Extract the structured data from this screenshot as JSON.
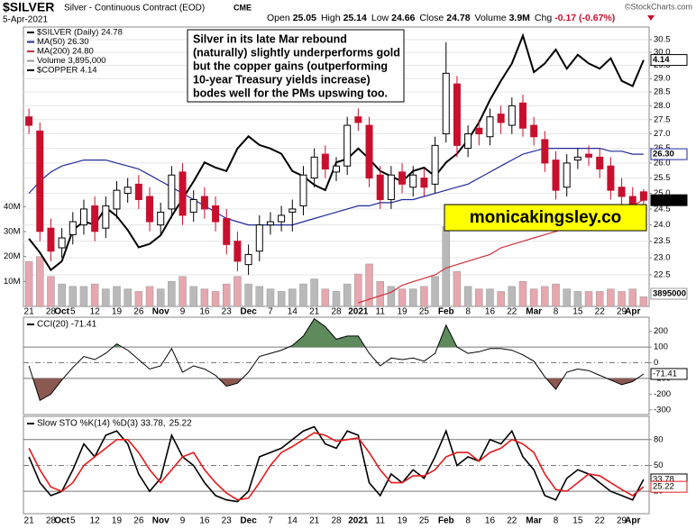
{
  "chart_data": [
    {
      "type": "candlestick",
      "title": "$SILVER",
      "subtitle": "Silver - Continuous Contract (EOD)",
      "exchange": "CME",
      "date": "5-Apr-2021",
      "credit": "©StockCharts.com",
      "quote": [
        {
          "label": "Open",
          "value": "25.05"
        },
        {
          "label": "High",
          "value": "25.14"
        },
        {
          "label": "Low",
          "value": "24.66"
        },
        {
          "label": "Close",
          "value": "24.78"
        },
        {
          "label": "Volume",
          "value": "3.9M"
        },
        {
          "label": "Chg",
          "value": "-0.17 (-0.67%)"
        }
      ],
      "annotation": [
        "Silver in its late Mar rebound",
        "(naturally) slightly underperforms gold",
        "but the copper gains (outperforming",
        "10-year Treasury yields increase)",
        "bodes well for the PMs upswing too."
      ],
      "watermark": "monicakingsley.co",
      "categories": [
        "21",
        null,
        "28",
        "Oct",
        "5",
        null,
        "12",
        null,
        "19",
        null,
        "26",
        null,
        "Nov",
        null,
        "9",
        null,
        "16",
        null,
        "23",
        null,
        "Dec",
        null,
        "7",
        null,
        "14",
        null,
        "21",
        null,
        "28",
        null,
        "2021",
        null,
        "11",
        null,
        "19",
        null,
        "25",
        null,
        "Feb",
        null,
        "8",
        null,
        "16",
        null,
        "22",
        null,
        "Mar",
        null,
        "8",
        null,
        "15",
        null,
        "22",
        null,
        "29",
        "Apr",
        null
      ],
      "price": {
        "name": "$SILVER (Daily) 24.78",
        "up_color": "#000000",
        "down_color": "#c8102e",
        "open": [
          27.6,
          27.1,
          23.9,
          23.3,
          23.7,
          24.0,
          24.6,
          23.9,
          24.5,
          25.0,
          25.3,
          24.9,
          24.0,
          24.5,
          25.7,
          24.4,
          24.9,
          24.6,
          24.2,
          23.5,
          22.8,
          23.2,
          24.0,
          24.1,
          24.4,
          24.6,
          25.5,
          26.3,
          25.7,
          25.9,
          27.6,
          27.3,
          25.6,
          24.8,
          25.7,
          25.2,
          25.5,
          25.3,
          27.0,
          28.8,
          26.5,
          27.2,
          26.9,
          27.7,
          27.3,
          28.1,
          27.3,
          26.8,
          26.1,
          25.2,
          26.1,
          26.3,
          26.2,
          25.9,
          25.2,
          24.9,
          25.05
        ],
        "high": [
          27.9,
          27.4,
          24.2,
          23.9,
          24.4,
          24.8,
          24.9,
          24.9,
          25.4,
          25.5,
          25.6,
          25.2,
          24.7,
          25.9,
          26.0,
          25.1,
          25.2,
          24.9,
          24.5,
          23.8,
          23.4,
          24.3,
          24.4,
          24.6,
          24.8,
          25.9,
          26.5,
          26.6,
          26.2,
          27.6,
          27.9,
          27.6,
          25.9,
          25.9,
          26.0,
          25.9,
          25.8,
          26.9,
          30.4,
          29.1,
          27.3,
          27.5,
          27.9,
          28.0,
          28.3,
          28.4,
          27.6,
          27.1,
          26.4,
          26.3,
          26.5,
          26.6,
          26.5,
          26.2,
          25.5,
          25.2,
          25.14
        ],
        "low": [
          27.0,
          23.5,
          22.9,
          23.0,
          23.4,
          23.7,
          23.5,
          23.6,
          24.2,
          24.7,
          24.5,
          23.8,
          23.7,
          24.2,
          24.0,
          24.1,
          24.2,
          23.8,
          23.1,
          22.6,
          22.5,
          22.9,
          23.7,
          23.8,
          23.8,
          24.3,
          25.2,
          25.5,
          25.4,
          25.6,
          27.1,
          25.2,
          24.5,
          24.5,
          25.0,
          24.9,
          24.9,
          25.0,
          26.7,
          26.2,
          26.2,
          26.6,
          26.6,
          27.0,
          27.0,
          26.9,
          26.6,
          25.7,
          24.8,
          24.9,
          25.8,
          25.9,
          25.5,
          24.8,
          24.6,
          24.0,
          24.66
        ],
        "close": [
          27.3,
          23.8,
          23.2,
          23.6,
          24.1,
          24.5,
          23.8,
          24.6,
          25.1,
          25.2,
          24.8,
          24.1,
          24.4,
          25.6,
          24.3,
          24.8,
          24.5,
          24.1,
          23.4,
          22.9,
          23.1,
          24.0,
          24.1,
          24.3,
          24.5,
          25.6,
          26.2,
          25.8,
          25.9,
          27.3,
          27.4,
          25.5,
          24.8,
          25.6,
          25.3,
          25.6,
          25.2,
          26.6,
          29.2,
          26.6,
          27.0,
          27.0,
          27.6,
          27.4,
          28.0,
          27.2,
          26.9,
          26.0,
          25.1,
          26.0,
          26.2,
          26.2,
          25.8,
          25.1,
          24.9,
          24.3,
          24.78
        ]
      },
      "log_scale": true,
      "ylim": [
        21.6,
        31.0
      ],
      "yticks": [
        22.5,
        {
          "value": 23,
          "label": "23.0"
        },
        23.5,
        {
          "value": 24,
          "label": "24.0"
        },
        24.5,
        {
          "value": 25,
          "label": "25.0"
        },
        25.5,
        {
          "value": 26,
          "label": "26.0"
        },
        26.5,
        {
          "value": 27,
          "label": "27.0"
        },
        27.5,
        {
          "value": 28,
          "label": "28.0"
        },
        28.5,
        {
          "value": 29,
          "label": "29.0"
        },
        29.5,
        {
          "value": 30,
          "label": "30.0"
        },
        30.5
      ],
      "grid": true,
      "overlays": [
        {
          "name": "MA(50) 26.30",
          "color": "#1f2a9a",
          "last_label": "26.30",
          "values": [
            25.0,
            25.4,
            25.7,
            25.9,
            26.0,
            26.1,
            26.1,
            26.1,
            26.0,
            25.9,
            25.8,
            25.6,
            25.4,
            25.2,
            25.0,
            24.8,
            24.6,
            24.4,
            24.2,
            24.1,
            24.0,
            24.0,
            24.0,
            24.0,
            24.0,
            24.1,
            24.2,
            24.3,
            24.4,
            24.5,
            24.6,
            24.6,
            24.7,
            24.7,
            24.8,
            24.8,
            24.9,
            25.0,
            25.1,
            25.2,
            25.3,
            25.5,
            25.7,
            25.9,
            26.1,
            26.3,
            26.4,
            26.5,
            26.5,
            26.5,
            26.5,
            26.5,
            26.5,
            26.4,
            26.4,
            26.3,
            26.3
          ]
        },
        {
          "name": "MA(200) 24.80",
          "color": "#d0303a",
          "values": [
            null,
            null,
            null,
            null,
            null,
            null,
            null,
            null,
            null,
            null,
            null,
            null,
            null,
            null,
            null,
            null,
            null,
            null,
            null,
            null,
            null,
            null,
            null,
            null,
            null,
            null,
            null,
            null,
            null,
            null,
            21.7,
            21.8,
            21.9,
            22.0,
            22.2,
            22.3,
            22.4,
            22.5,
            22.7,
            22.8,
            22.9,
            23.0,
            23.1,
            23.3,
            23.4,
            23.5,
            23.6,
            23.7,
            23.8,
            23.9,
            24.0,
            24.1,
            24.2,
            24.3,
            24.5,
            24.6,
            24.8
          ]
        }
      ],
      "volume": {
        "name": "Volume 3,895,000",
        "up_color": "#b9b9b9",
        "down_color": "#e6a7ae",
        "ylim": [
          0,
          112000000
        ],
        "yticks": [
          {
            "value": 10000000,
            "label": "10M"
          },
          {
            "value": 20000000,
            "label": "20M"
          },
          {
            "value": 30000000,
            "label": "30M"
          },
          {
            "value": 40000000,
            "label": "40M"
          }
        ],
        "values": [
          18000000,
          20000000,
          12000000,
          9000000,
          8000000,
          8000000,
          9000000,
          7000000,
          8000000,
          7000000,
          6000000,
          8000000,
          7000000,
          10000000,
          12000000,
          8000000,
          7000000,
          6000000,
          9000000,
          12000000,
          9000000,
          8000000,
          7000000,
          6000000,
          7000000,
          9000000,
          11000000,
          7000000,
          6000000,
          9000000,
          13000000,
          17000000,
          10000000,
          8000000,
          7000000,
          7000000,
          8000000,
          12000000,
          32000000,
          14000000,
          8000000,
          7000000,
          7000000,
          6000000,
          8000000,
          10000000,
          7000000,
          8000000,
          9000000,
          7000000,
          6000000,
          6000000,
          6000000,
          7000000,
          6000000,
          7000000,
          3895000
        ]
      },
      "copper": {
        "name": "$COPPER 4.14",
        "color": "#000000",
        "axis": "y2",
        "values": [
          3.11,
          3.03,
          2.93,
          2.98,
          3.16,
          3.21,
          3.19,
          3.29,
          3.24,
          3.16,
          3.06,
          3.08,
          3.13,
          3.24,
          3.34,
          3.44,
          3.55,
          3.52,
          3.5,
          3.63,
          3.7,
          3.65,
          3.63,
          3.6,
          3.5,
          3.47,
          3.42,
          3.39,
          3.55,
          3.57,
          3.63,
          3.57,
          3.5,
          3.47,
          3.44,
          3.5,
          3.52,
          3.47,
          3.55,
          3.6,
          3.68,
          3.78,
          3.91,
          4.02,
          4.12,
          4.28,
          4.07,
          4.12,
          4.2,
          4.09,
          4.17,
          4.12,
          4.09,
          4.15,
          4.02,
          3.99,
          4.14
        ]
      },
      "y2lim": [
        2.72,
        4.33
      ]
    },
    {
      "type": "line",
      "series": [
        {
          "name": "CCI(20) -71.41",
          "color": "#000000",
          "values": [
            -20,
            -240,
            -200,
            -110,
            -30,
            40,
            20,
            60,
            120,
            80,
            20,
            -40,
            -20,
            90,
            -60,
            -20,
            -40,
            -80,
            -150,
            -130,
            -60,
            40,
            60,
            80,
            110,
            170,
            280,
            230,
            150,
            170,
            170,
            60,
            -20,
            30,
            20,
            30,
            10,
            60,
            240,
            100,
            60,
            70,
            90,
            90,
            80,
            50,
            10,
            -90,
            -170,
            -60,
            -40,
            -50,
            -80,
            -110,
            -140,
            -120,
            -71.41
          ]
        }
      ],
      "ylim": [
        -330,
        290
      ],
      "yticks": [
        -300,
        -200,
        -100,
        0,
        100,
        200
      ],
      "reference_lines": [
        100,
        0,
        -100
      ],
      "fill_above": {
        "level": 100,
        "color": "#5e8a5c"
      },
      "fill_below": {
        "level": -100,
        "color": "#8a5a52"
      }
    },
    {
      "type": "line",
      "series": [
        {
          "name": "Slow STO %K(14) %D(3) 33.78,",
          "color": "#000000",
          "values": [
            60,
            30,
            15,
            20,
            45,
            75,
            60,
            85,
            90,
            75,
            40,
            20,
            35,
            85,
            60,
            50,
            30,
            15,
            10,
            8,
            20,
            60,
            65,
            70,
            80,
            90,
            95,
            75,
            70,
            90,
            85,
            30,
            15,
            40,
            30,
            45,
            35,
            60,
            90,
            50,
            60,
            55,
            80,
            75,
            90,
            60,
            45,
            15,
            10,
            35,
            45,
            40,
            30,
            20,
            15,
            10,
            33.78
          ]
        },
        {
          "name": "25.22",
          "color": "#e41a1c",
          "values": [
            70,
            45,
            25,
            20,
            30,
            50,
            60,
            70,
            80,
            80,
            65,
            45,
            30,
            45,
            60,
            65,
            45,
            30,
            18,
            10,
            12,
            30,
            50,
            65,
            72,
            80,
            88,
            85,
            78,
            80,
            82,
            65,
            45,
            30,
            30,
            38,
            38,
            45,
            60,
            65,
            65,
            55,
            65,
            70,
            80,
            75,
            65,
            40,
            22,
            20,
            30,
            40,
            38,
            30,
            22,
            15,
            25.22
          ]
        }
      ],
      "ylim": [
        -6,
        107
      ],
      "yticks": [
        20,
        50,
        80
      ],
      "reference_lines": [
        80,
        50,
        20
      ]
    }
  ]
}
